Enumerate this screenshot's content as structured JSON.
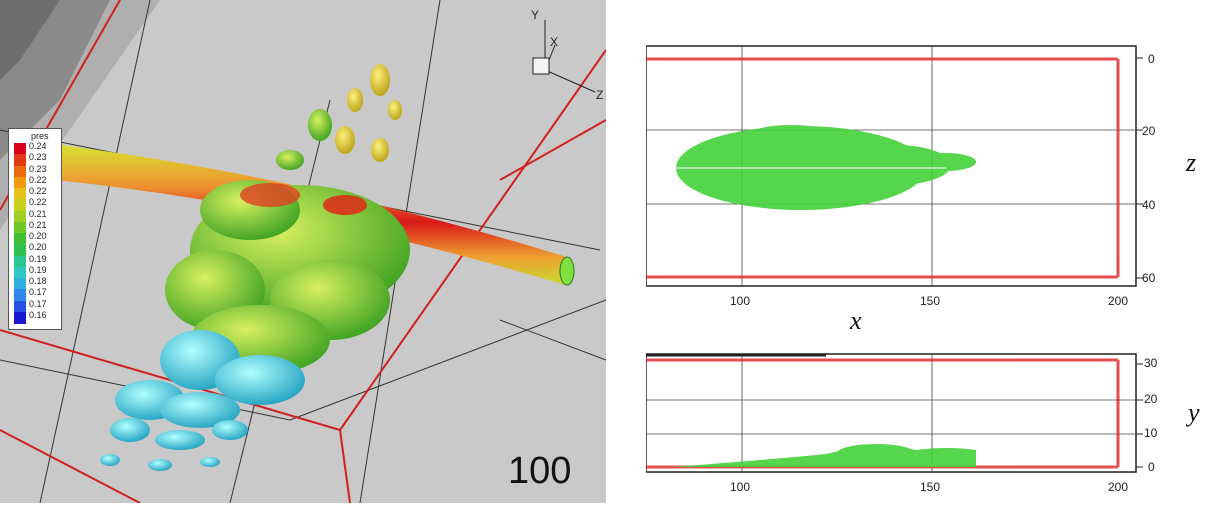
{
  "left_view": {
    "legend": {
      "title": "pres",
      "values": [
        "0.24",
        "0.23",
        "0.23",
        "0.22",
        "0.22",
        "0.22",
        "0.21",
        "0.21",
        "0.20",
        "0.20",
        "0.19",
        "0.19",
        "0.18",
        "0.17",
        "0.17",
        "0.16"
      ],
      "colors": [
        "#d8001a",
        "#e23a10",
        "#ea6a10",
        "#f09a10",
        "#e6c018",
        "#c8d020",
        "#a0d028",
        "#70c828",
        "#40c030",
        "#30c050",
        "#28c890",
        "#30c8c0",
        "#30b0e0",
        "#3088e8",
        "#2850e8",
        "#1818d0"
      ]
    },
    "axes": {
      "y": "Y",
      "x": "X",
      "z": "Z"
    },
    "frame_label": "100",
    "colors": {
      "background": "#c8c8c8",
      "domain_edge": "#d02020"
    }
  },
  "top_view": {
    "axis_label_x": "x",
    "axis_label_z": "z",
    "x_ticks": [
      "100",
      "150",
      "200"
    ],
    "z_ticks": [
      "0",
      "20",
      "40",
      "60"
    ]
  },
  "side_view": {
    "axis_label_y": "y",
    "x_ticks": [
      "100",
      "150",
      "200"
    ],
    "y_ticks": [
      "30",
      "20",
      "10",
      "0"
    ]
  }
}
